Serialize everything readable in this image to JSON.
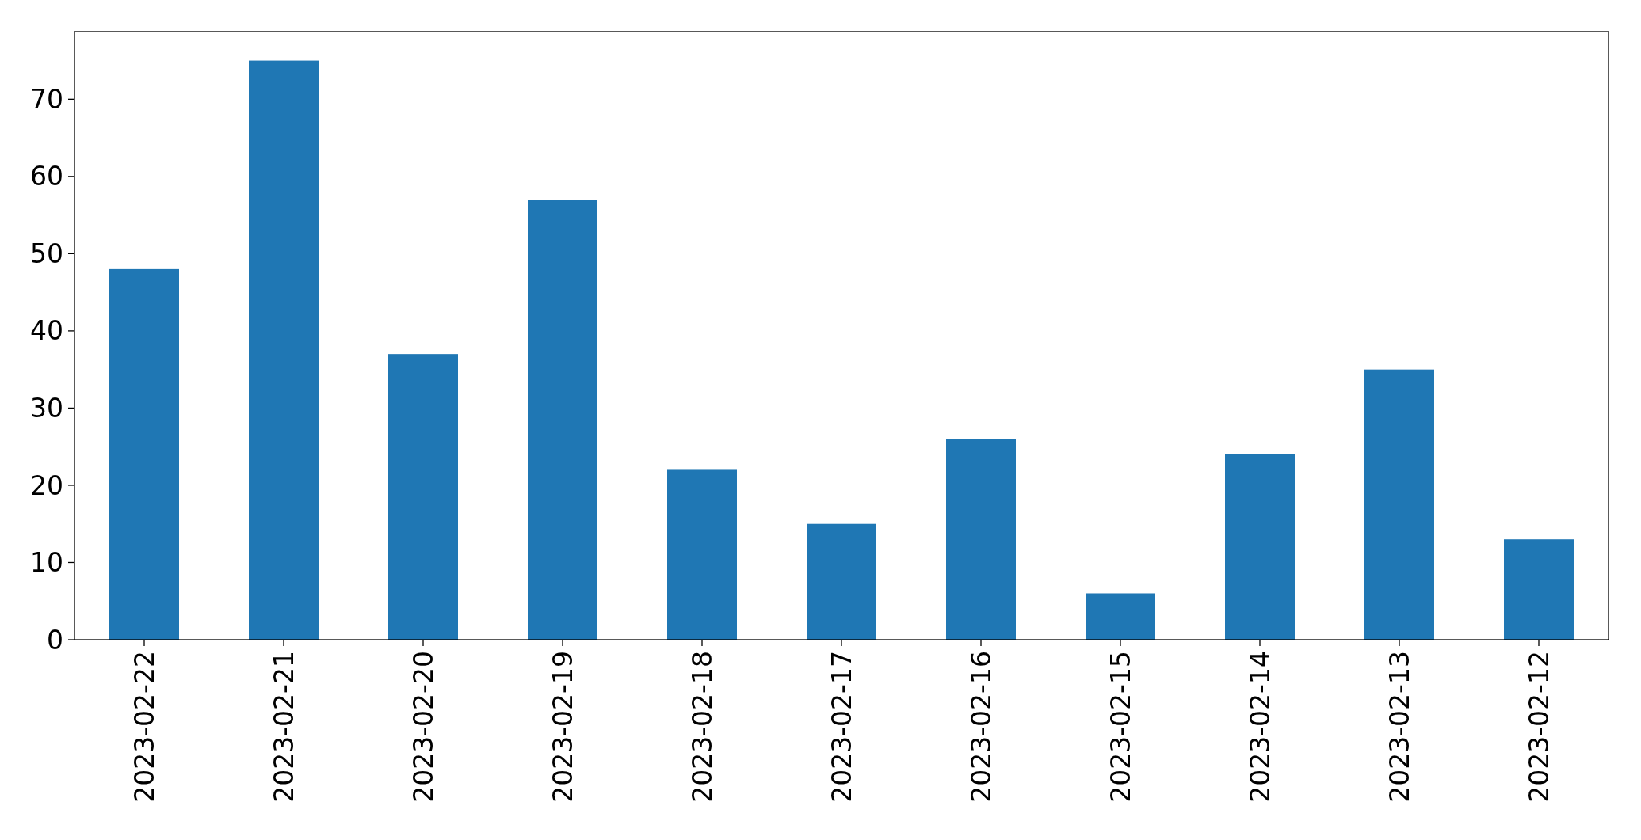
{
  "chart_data": {
    "type": "bar",
    "categories": [
      "2023-02-22",
      "2023-02-21",
      "2023-02-20",
      "2023-02-19",
      "2023-02-18",
      "2023-02-17",
      "2023-02-16",
      "2023-02-15",
      "2023-02-14",
      "2023-02-13",
      "2023-02-12"
    ],
    "values": [
      48,
      75,
      37,
      57,
      22,
      15,
      26,
      6,
      24,
      35,
      13
    ],
    "color": "#1f77b4",
    "ylim": [
      0,
      78.75
    ],
    "yticks": [
      0,
      10,
      20,
      30,
      40,
      50,
      60,
      70
    ],
    "grid": false
  }
}
